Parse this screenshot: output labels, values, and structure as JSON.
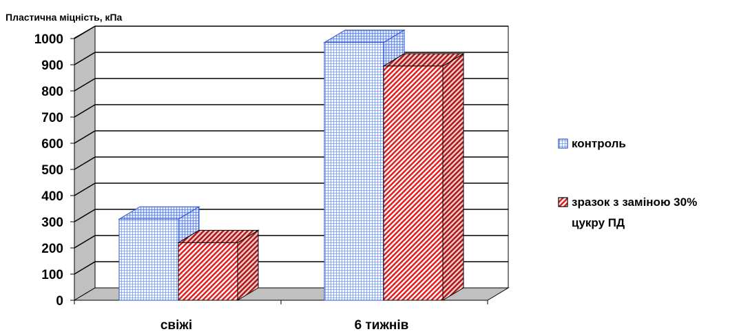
{
  "chart_data": {
    "type": "bar",
    "ylabel": "Пластична міцність, кПа",
    "categories": [
      "свіжі",
      "6 тижнів"
    ],
    "ylim": [
      0,
      1000
    ],
    "yticks": [
      0,
      100,
      200,
      300,
      400,
      500,
      600,
      700,
      800,
      900,
      1000
    ],
    "grid": true,
    "style": "3d-clustered-column",
    "legend_position": "right",
    "series": [
      {
        "name": "контроль",
        "values": [
          310,
          985
        ],
        "color": "#4f81ff",
        "pattern": "grid"
      },
      {
        "name": "зразок з заміною 30% цукру ПД",
        "name_lines": [
          "зразок з заміною 30%",
          "цукру ПД"
        ],
        "values": [
          220,
          895
        ],
        "color": "#e02020",
        "pattern": "diagonal"
      }
    ]
  }
}
